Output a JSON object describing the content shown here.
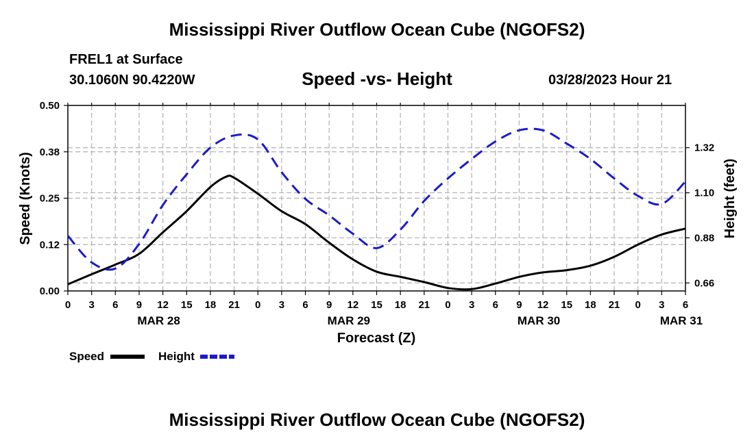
{
  "header": {
    "title": "Mississippi River Outflow Ocean Cube (NGOFS2)",
    "station": "FREL1 at Surface",
    "coordinates": "30.1060N  90.4220W",
    "subtitle": "Speed -vs- Height",
    "datetime": "03/28/2023 Hour 21"
  },
  "footer": {
    "title": "Mississippi River Outflow Ocean Cube (NGOFS2)"
  },
  "chart_data": {
    "type": "line",
    "title": "Speed -vs- Height",
    "xlabel": "Forecast (Z)",
    "ylabel": "Speed (Knots)",
    "ylabel_right": "Height (feet)",
    "xlim": [
      0,
      78
    ],
    "ylim": [
      0,
      0.5
    ],
    "ylim_right": [
      0.6208,
      1.5262
    ],
    "grid": true,
    "x_tick_labels": [
      "0",
      "3",
      "6",
      "9",
      "12",
      "15",
      "18",
      "21",
      "0",
      "3",
      "6",
      "9",
      "12",
      "15",
      "18",
      "21",
      "0",
      "3",
      "6",
      "9",
      "12",
      "15",
      "18",
      "21",
      "0",
      "3",
      "6"
    ],
    "date_labels": [
      {
        "x": 12,
        "label": "MAR 28"
      },
      {
        "x": 36,
        "label": "MAR 29"
      },
      {
        "x": 60,
        "label": "MAR 30"
      },
      {
        "x": 78,
        "label": "MAR 31"
      }
    ],
    "y_ticks": [
      0.0,
      0.125,
      0.25,
      0.375,
      0.5
    ],
    "y_tick_labels": [
      "0.00",
      "0.12",
      "0.25",
      "0.38",
      "0.50"
    ],
    "y_right_ticks": [
      0.66,
      0.88,
      1.1,
      1.32
    ],
    "y_right_tick_labels": [
      "0.66",
      "0.88",
      "1.10",
      "1.32"
    ],
    "legend": {
      "position": "bottom-left",
      "items": [
        {
          "label": "Speed",
          "color": "#000000",
          "style": "solid"
        },
        {
          "label": "Height",
          "color": "#1a1acc",
          "style": "dashed"
        }
      ]
    },
    "series": [
      {
        "name": "Speed",
        "axis": "left",
        "color": "#000000",
        "x": [
          0,
          3,
          6,
          9,
          12,
          15,
          18,
          20,
          21,
          24,
          27,
          30,
          33,
          36,
          39,
          42,
          45,
          48,
          51,
          54,
          57,
          60,
          63,
          66,
          69,
          72,
          75,
          78
        ],
        "values": [
          0.018,
          0.045,
          0.071,
          0.1,
          0.158,
          0.215,
          0.28,
          0.308,
          0.305,
          0.262,
          0.215,
          0.18,
          0.13,
          0.085,
          0.052,
          0.038,
          0.024,
          0.008,
          0.005,
          0.02,
          0.038,
          0.05,
          0.056,
          0.068,
          0.092,
          0.125,
          0.152,
          0.168
        ]
      },
      {
        "name": "Height",
        "axis": "right",
        "color": "#1a1acc",
        "x": [
          0,
          3,
          6,
          9,
          12,
          15,
          18,
          21,
          24,
          27,
          30,
          33,
          36,
          39,
          42,
          45,
          48,
          51,
          54,
          57,
          60,
          63,
          66,
          69,
          72,
          75,
          78
        ],
        "values": [
          0.89,
          0.76,
          0.73,
          0.85,
          1.04,
          1.19,
          1.32,
          1.38,
          1.36,
          1.2,
          1.07,
          0.99,
          0.9,
          0.83,
          0.92,
          1.06,
          1.17,
          1.265,
          1.35,
          1.405,
          1.405,
          1.34,
          1.265,
          1.17,
          1.085,
          1.045,
          1.155
        ]
      }
    ]
  }
}
